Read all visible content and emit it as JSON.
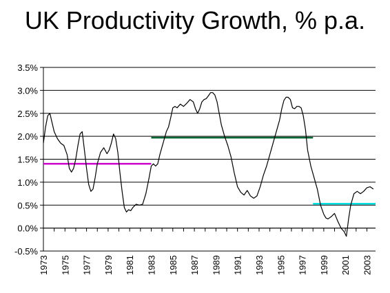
{
  "chart_data": {
    "type": "line",
    "title": "UK Productivity Growth, % p.a.",
    "xlabel": "",
    "ylabel": "",
    "xlim": [
      1973,
      2003.8
    ],
    "ylim": [
      -0.5,
      3.5
    ],
    "grid": true,
    "legend": "none",
    "yticks": [
      "3.5%",
      "3.0%",
      "2.5%",
      "2.0%",
      "1.5%",
      "1.0%",
      "0.5%",
      "0.0%",
      "-0.5%"
    ],
    "ytick_values": [
      3.5,
      3.0,
      2.5,
      2.0,
      1.5,
      1.0,
      0.5,
      0.0,
      -0.5
    ],
    "xticks": [
      "1973",
      "1975",
      "1977",
      "1979",
      "1981",
      "1983",
      "1985",
      "1987",
      "1989",
      "1991",
      "1993",
      "1995",
      "1997",
      "1999",
      "2001",
      "2003"
    ],
    "xtick_values": [
      1973,
      1975,
      1977,
      1979,
      1981,
      1983,
      1985,
      1987,
      1989,
      1991,
      1993,
      1995,
      1997,
      1999,
      2001,
      2003
    ],
    "series": [
      {
        "color": "#000000",
        "x": [
          1973.0,
          1973.2,
          1973.4,
          1973.6,
          1973.8,
          1974.0,
          1974.3,
          1974.6,
          1974.9,
          1975.2,
          1975.4,
          1975.6,
          1975.8,
          1976.0,
          1976.2,
          1976.4,
          1976.6,
          1976.8,
          1977.0,
          1977.2,
          1977.4,
          1977.6,
          1977.8,
          1978.0,
          1978.3,
          1978.6,
          1978.9,
          1979.1,
          1979.3,
          1979.5,
          1979.7,
          1979.9,
          1980.1,
          1980.3,
          1980.5,
          1980.7,
          1980.9,
          1981.1,
          1981.3,
          1981.6,
          1981.9,
          1982.2,
          1982.5,
          1982.8,
          1983.0,
          1983.2,
          1983.4,
          1983.6,
          1983.8,
          1984.1,
          1984.4,
          1984.6,
          1984.8,
          1985.0,
          1985.2,
          1985.4,
          1985.7,
          1986.0,
          1986.3,
          1986.6,
          1986.9,
          1987.1,
          1987.3,
          1987.5,
          1987.7,
          1987.9,
          1988.1,
          1988.3,
          1988.5,
          1988.7,
          1988.9,
          1989.1,
          1989.3,
          1989.5,
          1989.8,
          1990.1,
          1990.4,
          1990.7,
          1991.0,
          1991.3,
          1991.6,
          1991.9,
          1992.2,
          1992.5,
          1992.8,
          1993.1,
          1993.4,
          1993.7,
          1994.0,
          1994.3,
          1994.6,
          1994.9,
          1995.1,
          1995.3,
          1995.5,
          1995.7,
          1995.9,
          1996.1,
          1996.3,
          1996.5,
          1996.7,
          1996.9,
          1997.1,
          1997.3,
          1997.5,
          1997.8,
          1998.1,
          1998.4,
          1998.7,
          1999.0,
          1999.2,
          1999.4,
          1999.7,
          2000.0,
          2000.3,
          2000.6,
          2000.9,
          2001.1,
          2001.3,
          2001.5,
          2001.8,
          2002.1,
          2002.4,
          2002.7,
          2003.0,
          2003.3,
          2003.6
        ],
        "y": [
          1.85,
          2.2,
          2.45,
          2.5,
          2.3,
          2.1,
          1.95,
          1.85,
          1.8,
          1.6,
          1.3,
          1.22,
          1.3,
          1.5,
          1.8,
          2.05,
          2.1,
          1.7,
          1.3,
          0.95,
          0.8,
          0.85,
          1.1,
          1.4,
          1.65,
          1.75,
          1.62,
          1.7,
          1.85,
          2.05,
          1.95,
          1.65,
          1.2,
          0.8,
          0.45,
          0.35,
          0.4,
          0.38,
          0.45,
          0.52,
          0.5,
          0.52,
          0.75,
          1.1,
          1.35,
          1.4,
          1.35,
          1.4,
          1.6,
          1.85,
          2.1,
          2.2,
          2.4,
          2.62,
          2.65,
          2.62,
          2.7,
          2.65,
          2.72,
          2.8,
          2.75,
          2.6,
          2.5,
          2.6,
          2.75,
          2.8,
          2.82,
          2.88,
          2.95,
          2.95,
          2.9,
          2.75,
          2.5,
          2.25,
          2.0,
          1.8,
          1.55,
          1.2,
          0.9,
          0.78,
          0.72,
          0.82,
          0.7,
          0.65,
          0.7,
          0.9,
          1.15,
          1.35,
          1.6,
          1.85,
          2.1,
          2.35,
          2.6,
          2.78,
          2.85,
          2.85,
          2.8,
          2.62,
          2.6,
          2.65,
          2.65,
          2.62,
          2.45,
          2.15,
          1.7,
          1.35,
          1.1,
          0.85,
          0.5,
          0.3,
          0.22,
          0.2,
          0.25,
          0.32,
          0.15,
          0.0,
          -0.08,
          -0.18,
          0.2,
          0.5,
          0.75,
          0.8,
          0.75,
          0.8,
          0.88,
          0.9,
          0.85
        ]
      }
    ],
    "reference_lines": [
      {
        "color": "#cc00cc",
        "y": 1.4,
        "x": [
          1973,
          1983
        ]
      },
      {
        "color": "#006633",
        "y": 1.97,
        "x": [
          1983,
          1998
        ]
      },
      {
        "color": "#00e0e0",
        "y": 0.53,
        "x": [
          1998,
          2003.8
        ]
      }
    ],
    "colors": {
      "background": "#ffffff",
      "grid": "#000000",
      "axis": "#000000",
      "line": "#000000"
    }
  }
}
